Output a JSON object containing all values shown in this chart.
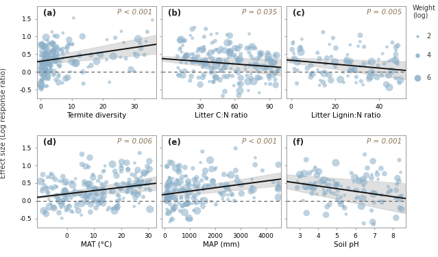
{
  "panels": [
    {
      "label": "(a)",
      "xlabel": "Termite diversity",
      "pvalue": "P < 0.001",
      "xlim": [
        -1,
        37
      ],
      "xticks": [
        0,
        10,
        20,
        30
      ],
      "slope": 0.013,
      "intercept": 0.3,
      "ci_slope_lo": 0.008,
      "ci_intercept_lo": 0.22,
      "ci_slope_hi": 0.018,
      "ci_intercept_hi": 0.38
    },
    {
      "label": "(b)",
      "xlabel": "Litter C:N ratio",
      "pvalue": "P = 0.035",
      "xlim": [
        -3,
        100
      ],
      "xticks": [
        30,
        60,
        90
      ],
      "slope": -0.0024,
      "intercept": 0.37,
      "ci_slope_lo": -0.004,
      "ci_intercept_lo": 0.3,
      "ci_slope_hi": -0.0008,
      "ci_intercept_hi": 0.44
    },
    {
      "label": "(c)",
      "xlabel": "Litter Lignin:N ratio",
      "pvalue": "P = 0.005",
      "xlim": [
        -2,
        52
      ],
      "xticks": [
        0,
        20,
        40
      ],
      "slope": -0.0055,
      "intercept": 0.33,
      "ci_slope_lo": -0.009,
      "ci_intercept_lo": 0.26,
      "ci_slope_hi": -0.002,
      "ci_intercept_hi": 0.4
    },
    {
      "label": "(d)",
      "xlabel": "MAT (°C)",
      "pvalue": "P = 0.006",
      "xlim": [
        -11,
        33
      ],
      "xticks": [
        0,
        10,
        20,
        30
      ],
      "slope": 0.009,
      "intercept": 0.2,
      "ci_slope_lo": 0.005,
      "ci_intercept_lo": 0.14,
      "ci_slope_hi": 0.013,
      "ci_intercept_hi": 0.26
    },
    {
      "label": "(e)",
      "xlabel": "MAP (mm)",
      "pvalue": "P < 0.001",
      "xlim": [
        -100,
        4600
      ],
      "xticks": [
        0,
        1000,
        2000,
        3000,
        4000
      ],
      "slope": 9.5e-05,
      "intercept": 0.18,
      "ci_slope_lo": 7e-05,
      "ci_intercept_lo": 0.11,
      "ci_slope_hi": 0.00012,
      "ci_intercept_hi": 0.25
    },
    {
      "label": "(f)",
      "xlabel": "Soil pH",
      "pvalue": "P = 0.001",
      "xlim": [
        2.3,
        8.7
      ],
      "xticks": [
        3,
        4,
        5,
        6,
        7,
        8
      ],
      "slope": -0.075,
      "intercept": 0.72,
      "ci_slope_lo": -0.11,
      "ci_intercept_lo": 0.6,
      "ci_slope_hi": -0.04,
      "ci_intercept_hi": 0.84
    }
  ],
  "ylim": [
    -0.75,
    1.85
  ],
  "yticks": [
    -0.5,
    0.0,
    0.5,
    1.0,
    1.5
  ],
  "ylabel": "Effect size (Log response ratio)",
  "dot_color": "#8aaec8",
  "dot_alpha": 0.55,
  "dot_size_small": 8,
  "dot_size_medium": 20,
  "dot_size_large": 40,
  "line_color": "#111111",
  "ci_color": "#cccccc",
  "ci_alpha": 0.6,
  "dashed_color": "#666666",
  "pvalue_color": "#8B7355",
  "legend_sizes": [
    2,
    4,
    6
  ],
  "legend_title": "Weight\n(log)",
  "background_color": "#ffffff"
}
